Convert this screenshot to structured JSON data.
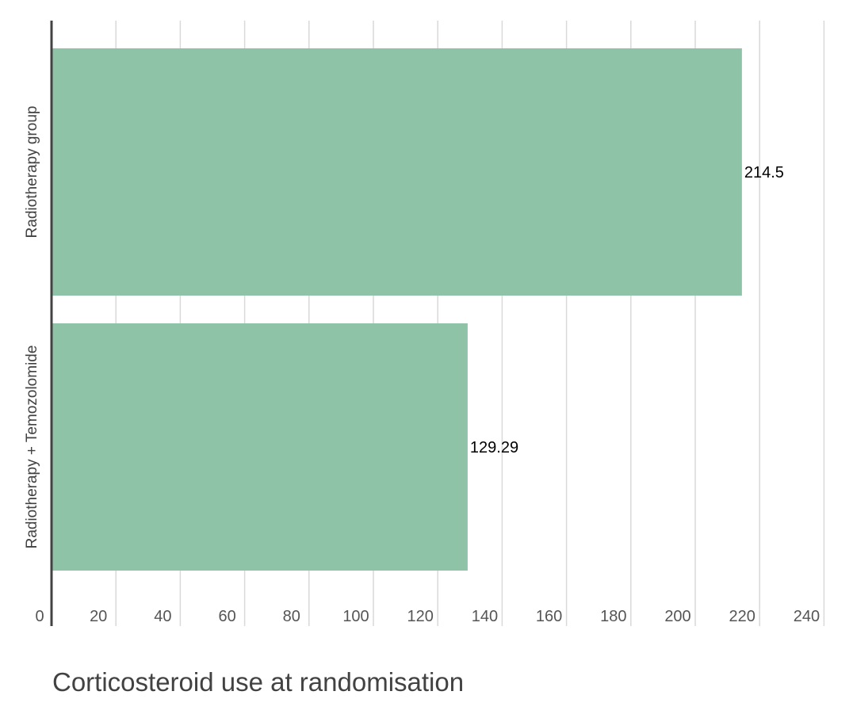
{
  "chart_data": {
    "type": "bar",
    "orientation": "horizontal",
    "title": "Corticosteroid use at randomisation",
    "xlabel": "",
    "ylabel": "",
    "categories": [
      "Radiotherapy group",
      "Radiotherapy + Temozolomide"
    ],
    "values": [
      214.5,
      129.29
    ],
    "value_labels": [
      "214.5",
      "129.29"
    ],
    "x_ticks": [
      "0",
      "20",
      "40",
      "60",
      "80",
      "100",
      "120",
      "140",
      "160",
      "180",
      "200",
      "220",
      "240"
    ],
    "xlim": [
      0,
      240
    ],
    "grid": true,
    "legend": "none",
    "colors": {
      "bar": "#8fc3a7",
      "grid": "#d9d9d9",
      "axis": "#424242",
      "tick_text": "#555555",
      "label_text": "#000000"
    }
  }
}
